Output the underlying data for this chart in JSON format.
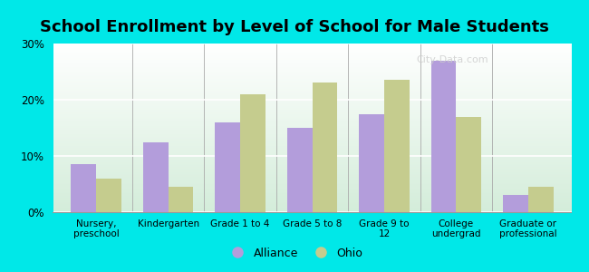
{
  "title": "School Enrollment by Level of School for Male Students",
  "categories": [
    "Nursery,\npreschool",
    "Kindergarten",
    "Grade 1 to 4",
    "Grade 5 to 8",
    "Grade 9 to\n12",
    "College\nundergrad",
    "Graduate or\nprofessional"
  ],
  "alliance_values": [
    8.5,
    12.5,
    16.0,
    15.0,
    17.5,
    27.0,
    3.0
  ],
  "ohio_values": [
    6.0,
    4.5,
    21.0,
    23.0,
    23.5,
    17.0,
    4.5
  ],
  "alliance_color": "#b39ddb",
  "ohio_color": "#c5cc8e",
  "plot_bg_top": "#ffffff",
  "plot_bg_bottom": "#d4edda",
  "ylim": [
    0,
    30
  ],
  "yticks": [
    0,
    10,
    20,
    30
  ],
  "ytick_labels": [
    "0%",
    "10%",
    "20%",
    "30%"
  ],
  "legend_labels": [
    "Alliance",
    "Ohio"
  ],
  "title_fontsize": 13,
  "bar_width": 0.35,
  "outer_bg": "#00e8e8"
}
